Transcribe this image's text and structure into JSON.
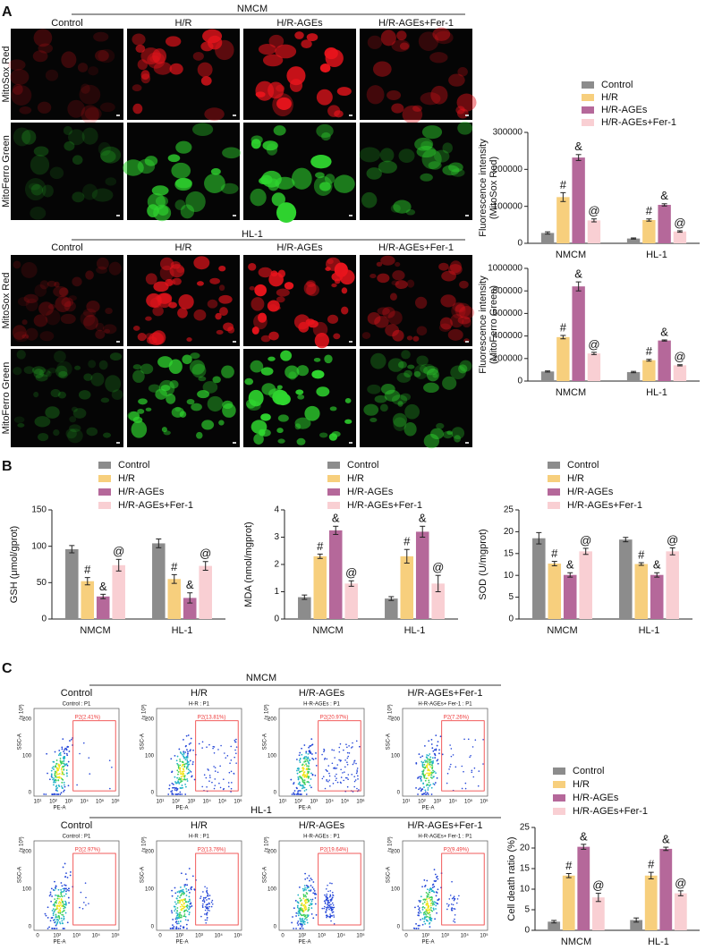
{
  "panel_labels": [
    "A",
    "B",
    "C"
  ],
  "microscopy": {
    "rows": [
      "MitoSox Red",
      "MitoFerro Green"
    ],
    "groups": [
      {
        "title": "NMCM",
        "columns": [
          "Control",
          "H/R",
          "H/R-AGEs",
          "H/R-AGEs+Fer-1"
        ]
      },
      {
        "title": "HL-1",
        "columns": [
          "Control",
          "H/R",
          "H/R-AGEs",
          "H/R-AGEs+Fer-1"
        ]
      }
    ]
  },
  "flow": {
    "x_label": "PE-A",
    "y_label": "SSC-A",
    "y_unit": "(x 10³)",
    "y_tick_labels": [
      "0",
      "100",
      "200"
    ],
    "groups": [
      {
        "title": "NMCM",
        "columns": [
          "Control",
          "H/R",
          "H/R-AGEs",
          "H/R-AGEs+Fer-1"
        ],
        "plot_titles": [
          "Control : P1",
          "H-R : P1",
          "H-R-AGEs : P1",
          "H-R-AGEs+ Fer-1 : P1"
        ],
        "gates": [
          "P2(2.41%)",
          "P2(13.81%)",
          "P2(20.97%)",
          "P2(7.26%)"
        ],
        "x_tick_labels": [
          "10¹",
          "10²",
          "10³",
          "10⁴",
          "10⁵",
          "10⁶"
        ]
      },
      {
        "title": "HL-1",
        "columns": [
          "Control",
          "H/R",
          "H/R-AGEs",
          "H/R-AGEs+Fer-1"
        ],
        "plot_titles": [
          "Control : P1",
          "H-R : P1",
          "H-R-AGEs : P1",
          "H-R-AGEs+ Fer-1 : P1"
        ],
        "gates": [
          "P2(2.97%)",
          "P2(13.76%)",
          "P2(19.64%)",
          "P2(9.49%)"
        ],
        "x_tick_labels": [
          "0",
          "10²",
          "10³",
          "10⁴",
          "10⁵"
        ]
      }
    ]
  },
  "chart_data": [
    {
      "type": "bar",
      "y_label": [
        "Fluorescence intensity",
        "(MitoSox Red)"
      ],
      "categories": [
        "NMCM",
        "HL-1"
      ],
      "ylim": [
        0,
        300000
      ],
      "yticks": [
        0,
        100000,
        200000,
        300000
      ],
      "series": [
        {
          "name": "Control",
          "color": "#8c8c8c",
          "values": [
            28000,
            13000
          ],
          "errors": [
            3000,
            1500
          ]
        },
        {
          "name": "H/R",
          "color": "#f7cf7d",
          "values": [
            125000,
            63000
          ],
          "errors": [
            12000,
            3000
          ],
          "annotation": "#"
        },
        {
          "name": "H/R-AGEs",
          "color": "#b5689a",
          "values": [
            232000,
            104000
          ],
          "errors": [
            8000,
            3000
          ],
          "annotation": "&"
        },
        {
          "name": "H/R-AGEs+Fer-1",
          "color": "#f9cfd3",
          "values": [
            62000,
            32000
          ],
          "errors": [
            4000,
            2000
          ],
          "annotation": "@"
        }
      ]
    },
    {
      "type": "bar",
      "y_label": [
        "Fluorescence intensity",
        "(MitoFerro Green)"
      ],
      "categories": [
        "NMCM",
        "HL-1"
      ],
      "ylim": [
        0,
        1000000
      ],
      "yticks": [
        0,
        200000,
        400000,
        600000,
        800000,
        1000000
      ],
      "series": [
        {
          "name": "Control",
          "color": "#8c8c8c",
          "values": [
            85000,
            80000
          ],
          "errors": [
            5000,
            6000
          ]
        },
        {
          "name": "H/R",
          "color": "#f7cf7d",
          "values": [
            390000,
            185000
          ],
          "errors": [
            15000,
            8000
          ],
          "annotation": "#"
        },
        {
          "name": "H/R-AGEs",
          "color": "#b5689a",
          "values": [
            840000,
            360000
          ],
          "errors": [
            40000,
            5000
          ],
          "annotation": "&"
        },
        {
          "name": "H/R-AGEs+Fer-1",
          "color": "#f9cfd3",
          "values": [
            245000,
            140000
          ],
          "errors": [
            10000,
            5000
          ],
          "annotation": "@"
        }
      ]
    },
    {
      "type": "bar",
      "y_label": [
        "GSH (μmol/gprot)"
      ],
      "categories": [
        "NMCM",
        "HL-1"
      ],
      "ylim": [
        0,
        150
      ],
      "yticks": [
        0,
        50,
        100,
        150
      ],
      "series": [
        {
          "name": "Control",
          "color": "#8c8c8c",
          "values": [
            96,
            104
          ],
          "errors": [
            5,
            6
          ]
        },
        {
          "name": "H/R",
          "color": "#f7cf7d",
          "values": [
            52,
            55
          ],
          "errors": [
            5,
            6
          ],
          "annotation": "#"
        },
        {
          "name": "H/R-AGEs",
          "color": "#b5689a",
          "values": [
            31,
            29
          ],
          "errors": [
            3,
            7
          ],
          "annotation": "&"
        },
        {
          "name": "H/R-AGEs+Fer-1",
          "color": "#f9cfd3",
          "values": [
            74,
            73
          ],
          "errors": [
            8,
            6
          ],
          "annotation": "@"
        }
      ]
    },
    {
      "type": "bar",
      "y_label": [
        "MDA (nmol/mgprot)"
      ],
      "categories": [
        "NMCM",
        "HL-1"
      ],
      "ylim": [
        0,
        4
      ],
      "yticks": [
        0,
        1,
        2,
        3,
        4
      ],
      "series": [
        {
          "name": "Control",
          "color": "#8c8c8c",
          "values": [
            0.8,
            0.75
          ],
          "errors": [
            0.08,
            0.07
          ]
        },
        {
          "name": "H/R",
          "color": "#f7cf7d",
          "values": [
            2.3,
            2.3
          ],
          "errors": [
            0.08,
            0.25
          ],
          "annotation": "#"
        },
        {
          "name": "H/R-AGEs",
          "color": "#b5689a",
          "values": [
            3.25,
            3.2
          ],
          "errors": [
            0.15,
            0.2
          ],
          "annotation": "&"
        },
        {
          "name": "H/R-AGEs+Fer-1",
          "color": "#f9cfd3",
          "values": [
            1.3,
            1.3
          ],
          "errors": [
            0.1,
            0.3
          ],
          "annotation": "@"
        }
      ]
    },
    {
      "type": "bar",
      "y_label": [
        "SOD (U/mgprot)"
      ],
      "categories": [
        "NMCM",
        "HL-1"
      ],
      "ylim": [
        0,
        25
      ],
      "yticks": [
        0,
        5,
        10,
        15,
        20,
        25
      ],
      "series": [
        {
          "name": "Control",
          "color": "#8c8c8c",
          "values": [
            18.5,
            18.2
          ],
          "errors": [
            1.3,
            0.5
          ]
        },
        {
          "name": "H/R",
          "color": "#f7cf7d",
          "values": [
            12.7,
            12.6
          ],
          "errors": [
            0.5,
            0.3
          ],
          "annotation": "#"
        },
        {
          "name": "H/R-AGEs",
          "color": "#b5689a",
          "values": [
            10.1,
            10.1
          ],
          "errors": [
            0.5,
            0.5
          ],
          "annotation": "&"
        },
        {
          "name": "H/R-AGEs+Fer-1",
          "color": "#f9cfd3",
          "values": [
            15.5,
            15.5
          ],
          "errors": [
            0.7,
            0.8
          ],
          "annotation": "@"
        }
      ]
    },
    {
      "type": "bar",
      "y_label": [
        "Cell death ratio (%)"
      ],
      "categories": [
        "NMCM",
        "HL-1"
      ],
      "ylim": [
        0,
        25
      ],
      "yticks": [
        0,
        5,
        10,
        15,
        20,
        25
      ],
      "series": [
        {
          "name": "Control",
          "color": "#8c8c8c",
          "values": [
            2.1,
            2.5
          ],
          "errors": [
            0.3,
            0.5
          ]
        },
        {
          "name": "H/R",
          "color": "#f7cf7d",
          "values": [
            13.3,
            13.3
          ],
          "errors": [
            0.5,
            0.8
          ],
          "annotation": "#"
        },
        {
          "name": "H/R-AGEs",
          "color": "#b5689a",
          "values": [
            20.3,
            19.8
          ],
          "errors": [
            0.6,
            0.4
          ],
          "annotation": "&"
        },
        {
          "name": "H/R-AGEs+Fer-1",
          "color": "#f9cfd3",
          "values": [
            8,
            9
          ],
          "errors": [
            1,
            0.6
          ],
          "annotation": "@"
        }
      ]
    }
  ]
}
